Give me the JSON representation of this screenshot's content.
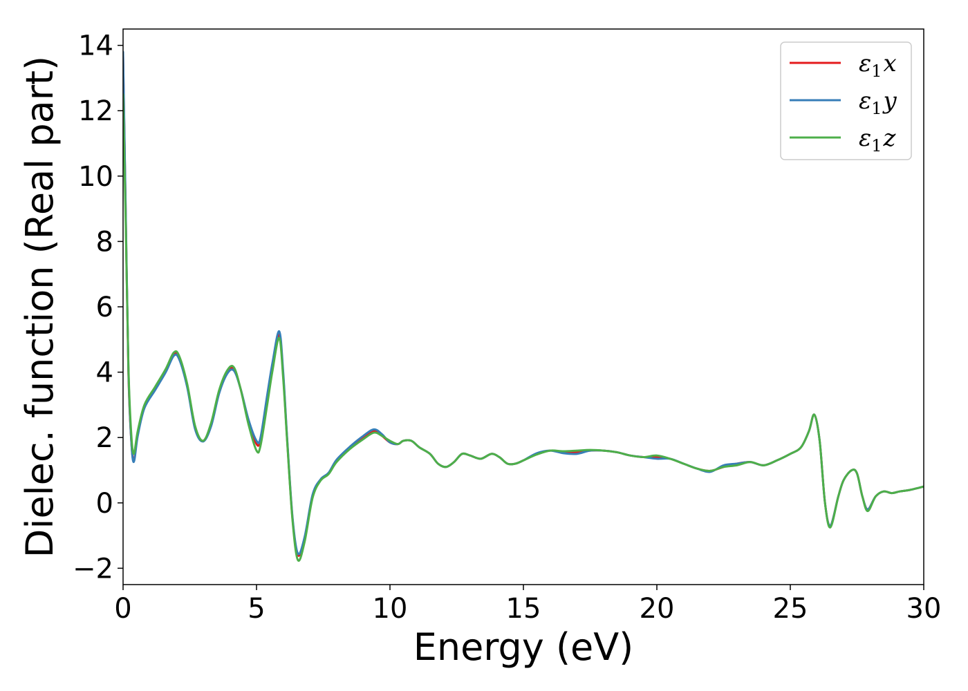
{
  "chart_data": {
    "type": "line",
    "xlabel": "Energy (eV)",
    "ylabel": "Dielec. function (Real part)",
    "xlim": [
      0,
      30
    ],
    "ylim": [
      -2.5,
      14.5
    ],
    "xticks": [
      0,
      5,
      10,
      15,
      20,
      25,
      30
    ],
    "xtick_labels": [
      "0",
      "5",
      "10",
      "15",
      "20",
      "25",
      "30"
    ],
    "yticks": [
      -2,
      0,
      2,
      4,
      6,
      8,
      10,
      12,
      14
    ],
    "ytick_labels": [
      "−2",
      "0",
      "2",
      "4",
      "6",
      "8",
      "10",
      "12",
      "14"
    ],
    "grid": false,
    "legend_position": "top-right",
    "series": [
      {
        "name": "ε1x",
        "name_base": "ε",
        "name_sub": "1",
        "name_suffix": "x",
        "color": "#e41a1c",
        "x": [
          0.0,
          0.1,
          0.2,
          0.3,
          0.4,
          0.55,
          0.8,
          1.2,
          1.6,
          1.9,
          2.1,
          2.4,
          2.7,
          3.0,
          3.3,
          3.6,
          3.9,
          4.15,
          4.4,
          4.7,
          5.0,
          5.15,
          5.4,
          5.6,
          5.85,
          6.0,
          6.15,
          6.35,
          6.55,
          6.8,
          7.1,
          7.4,
          7.7,
          8.0,
          8.5,
          9.0,
          9.4,
          9.7,
          10.0,
          10.3,
          10.5,
          10.8,
          11.1,
          11.5,
          11.8,
          12.1,
          12.4,
          12.7,
          13.0,
          13.4,
          13.8,
          14.1,
          14.4,
          14.7,
          15.0,
          15.5,
          16.0,
          16.5,
          17.0,
          17.5,
          18.0,
          18.5,
          19.0,
          19.5,
          20.0,
          20.5,
          21.0,
          21.5,
          22.0,
          22.5,
          23.0,
          23.5,
          24.0,
          24.5,
          25.0,
          25.4,
          25.7,
          25.9,
          26.1,
          26.3,
          26.5,
          26.8,
          27.0,
          27.3,
          27.5,
          27.7,
          27.9,
          28.2,
          28.5,
          28.8,
          29.1,
          29.5,
          30.0
        ],
        "y": [
          13.7,
          8.8,
          4.0,
          2.0,
          1.3,
          2.1,
          2.95,
          3.5,
          4.05,
          4.55,
          4.45,
          3.6,
          2.3,
          1.9,
          2.4,
          3.4,
          4.0,
          4.1,
          3.5,
          2.5,
          1.8,
          1.95,
          3.2,
          4.2,
          5.15,
          3.9,
          1.9,
          -0.5,
          -1.6,
          -1.1,
          0.2,
          0.7,
          0.9,
          1.3,
          1.7,
          2.0,
          2.2,
          2.05,
          1.85,
          1.8,
          1.9,
          1.9,
          1.7,
          1.5,
          1.2,
          1.1,
          1.25,
          1.5,
          1.45,
          1.35,
          1.5,
          1.4,
          1.2,
          1.2,
          1.3,
          1.5,
          1.6,
          1.55,
          1.55,
          1.6,
          1.6,
          1.55,
          1.45,
          1.4,
          1.4,
          1.35,
          1.2,
          1.05,
          0.98,
          1.1,
          1.2,
          1.25,
          1.15,
          1.3,
          1.5,
          1.7,
          2.2,
          2.7,
          1.9,
          0.0,
          -0.7,
          0.2,
          0.7,
          1.0,
          0.9,
          0.2,
          -0.2,
          0.2,
          0.35,
          0.3,
          0.35,
          0.4,
          0.5
        ]
      },
      {
        "name": "ε1y",
        "name_base": "ε",
        "name_sub": "1",
        "name_suffix": "y",
        "color": "#377eb8",
        "x": [
          0.0,
          0.1,
          0.2,
          0.3,
          0.4,
          0.55,
          0.8,
          1.2,
          1.6,
          1.9,
          2.1,
          2.4,
          2.7,
          3.0,
          3.3,
          3.6,
          3.9,
          4.15,
          4.4,
          4.7,
          5.0,
          5.15,
          5.4,
          5.6,
          5.85,
          6.0,
          6.15,
          6.35,
          6.55,
          6.8,
          7.1,
          7.4,
          7.7,
          8.0,
          8.5,
          9.0,
          9.4,
          9.7,
          10.0,
          10.3,
          10.5,
          10.8,
          11.1,
          11.5,
          11.8,
          12.1,
          12.4,
          12.7,
          13.0,
          13.4,
          13.8,
          14.1,
          14.4,
          14.7,
          15.0,
          15.5,
          16.0,
          16.5,
          17.0,
          17.5,
          18.0,
          18.5,
          19.0,
          19.5,
          20.0,
          20.5,
          21.0,
          21.5,
          22.0,
          22.5,
          23.0,
          23.5,
          24.0,
          24.5,
          25.0,
          25.4,
          25.7,
          25.9,
          26.1,
          26.3,
          26.5,
          26.8,
          27.0,
          27.3,
          27.5,
          27.7,
          27.9,
          28.2,
          28.5,
          28.8,
          29.1,
          29.5,
          30.0
        ],
        "y": [
          13.8,
          8.9,
          4.1,
          2.0,
          1.25,
          2.05,
          2.9,
          3.45,
          4.0,
          4.5,
          4.4,
          3.55,
          2.25,
          1.88,
          2.35,
          3.35,
          3.95,
          4.05,
          3.5,
          2.55,
          1.9,
          2.0,
          3.3,
          4.3,
          5.25,
          4.0,
          1.95,
          -0.45,
          -1.55,
          -1.05,
          0.25,
          0.72,
          0.92,
          1.32,
          1.72,
          2.05,
          2.25,
          2.1,
          1.85,
          1.8,
          1.9,
          1.9,
          1.7,
          1.5,
          1.2,
          1.1,
          1.25,
          1.5,
          1.45,
          1.35,
          1.5,
          1.4,
          1.2,
          1.2,
          1.3,
          1.52,
          1.6,
          1.52,
          1.5,
          1.6,
          1.6,
          1.55,
          1.45,
          1.4,
          1.35,
          1.35,
          1.2,
          1.05,
          0.95,
          1.15,
          1.2,
          1.25,
          1.15,
          1.3,
          1.5,
          1.7,
          2.2,
          2.7,
          1.9,
          0.0,
          -0.7,
          0.2,
          0.7,
          1.0,
          0.9,
          0.2,
          -0.2,
          0.2,
          0.35,
          0.3,
          0.35,
          0.4,
          0.5
        ]
      },
      {
        "name": "ε1z",
        "name_base": "ε",
        "name_sub": "1",
        "name_suffix": "z",
        "color": "#4daf4a",
        "x": [
          0.0,
          0.1,
          0.2,
          0.3,
          0.4,
          0.55,
          0.8,
          1.2,
          1.6,
          1.9,
          2.1,
          2.4,
          2.7,
          3.0,
          3.3,
          3.6,
          3.9,
          4.15,
          4.4,
          4.7,
          5.0,
          5.15,
          5.4,
          5.6,
          5.85,
          6.0,
          6.15,
          6.35,
          6.55,
          6.8,
          7.1,
          7.4,
          7.7,
          8.0,
          8.5,
          9.0,
          9.4,
          9.7,
          10.0,
          10.3,
          10.5,
          10.8,
          11.1,
          11.5,
          11.8,
          12.1,
          12.4,
          12.7,
          13.0,
          13.4,
          13.8,
          14.1,
          14.4,
          14.7,
          15.0,
          15.5,
          16.0,
          16.5,
          17.0,
          17.5,
          18.0,
          18.5,
          19.0,
          19.5,
          20.0,
          20.5,
          21.0,
          21.5,
          22.0,
          22.5,
          23.0,
          23.5,
          24.0,
          24.5,
          25.0,
          25.4,
          25.7,
          25.9,
          26.1,
          26.3,
          26.5,
          26.8,
          27.0,
          27.3,
          27.5,
          27.7,
          27.9,
          28.2,
          28.5,
          28.8,
          29.1,
          29.5,
          30.0
        ],
        "y": [
          12.5,
          8.5,
          4.2,
          2.2,
          1.5,
          2.2,
          3.0,
          3.55,
          4.1,
          4.6,
          4.5,
          3.65,
          2.35,
          1.9,
          2.45,
          3.45,
          4.05,
          4.15,
          3.5,
          2.4,
          1.6,
          1.75,
          3.0,
          4.05,
          5.05,
          3.8,
          1.85,
          -0.55,
          -1.75,
          -1.2,
          0.15,
          0.68,
          0.88,
          1.25,
          1.65,
          1.95,
          2.15,
          2.05,
          1.9,
          1.8,
          1.9,
          1.9,
          1.7,
          1.5,
          1.2,
          1.1,
          1.25,
          1.5,
          1.45,
          1.35,
          1.5,
          1.4,
          1.2,
          1.2,
          1.3,
          1.48,
          1.6,
          1.58,
          1.6,
          1.62,
          1.6,
          1.55,
          1.45,
          1.4,
          1.45,
          1.35,
          1.2,
          1.05,
          0.98,
          1.1,
          1.15,
          1.25,
          1.15,
          1.3,
          1.5,
          1.7,
          2.2,
          2.7,
          1.9,
          0.0,
          -0.75,
          0.2,
          0.7,
          1.0,
          0.9,
          0.2,
          -0.25,
          0.2,
          0.35,
          0.3,
          0.35,
          0.4,
          0.5
        ]
      }
    ]
  }
}
